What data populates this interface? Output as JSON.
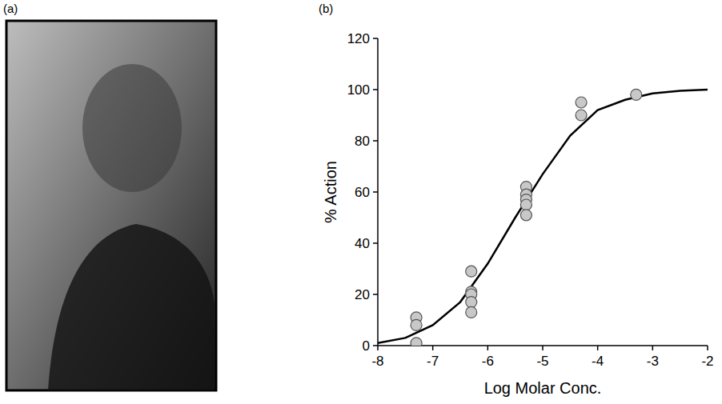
{
  "panels": {
    "a": "(a)",
    "b": "(b)"
  },
  "chart_data": {
    "type": "scatter",
    "x_label": "Log Molar Conc.",
    "y_label": "% Action",
    "xlim": [
      -8,
      -2
    ],
    "xticks": [
      -8,
      -7,
      -6,
      -5,
      -4,
      -3,
      -2
    ],
    "ylim": [
      0,
      120
    ],
    "yticks": [
      0,
      20,
      40,
      60,
      80,
      100,
      120
    ],
    "grid": false,
    "series": [
      {
        "type": "scatter",
        "marker": "circle",
        "color": "#c8c8c8",
        "x": [
          -7.3,
          -7.3,
          -7.3,
          -6.3,
          -6.3,
          -6.3,
          -6.3,
          -6.3,
          -5.3,
          -5.3,
          -5.3,
          -5.3,
          -5.3,
          -4.3,
          -4.3,
          -3.3
        ],
        "values": [
          11,
          8,
          1,
          29,
          21,
          20,
          17,
          13,
          62,
          59,
          57,
          55,
          51,
          95,
          90,
          98
        ]
      },
      {
        "type": "line",
        "line_style": "solid",
        "color": "#000000",
        "x": [
          -8,
          -7.5,
          -7,
          -6.5,
          -6,
          -5.5,
          -5,
          -4.5,
          -4,
          -3.5,
          -3,
          -2.5,
          -2
        ],
        "values": [
          1,
          3,
          8,
          17,
          32,
          50,
          67,
          82,
          92,
          96,
          98.5,
          99.5,
          100
        ]
      }
    ]
  }
}
